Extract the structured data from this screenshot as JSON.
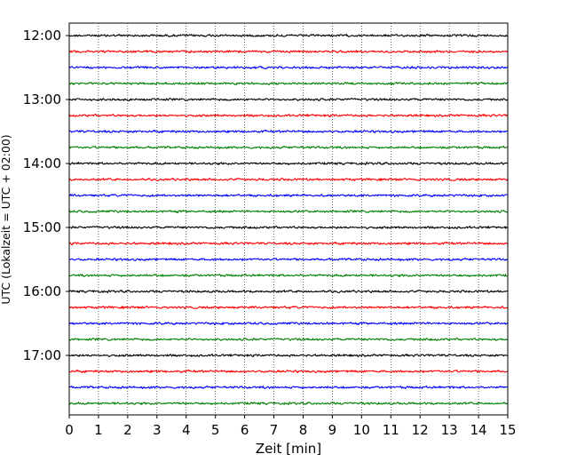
{
  "chart_data": {
    "type": "line",
    "title": "",
    "xlabel": "Zeit  [min]",
    "ylabel": "UTC (Lokalzeit = UTC + 02:00)",
    "xlim": [
      0,
      15
    ],
    "x_ticks": [
      0,
      1,
      2,
      3,
      4,
      5,
      6,
      7,
      8,
      9,
      10,
      11,
      12,
      13,
      14,
      15
    ],
    "x_tick_labels": [
      "0",
      "1",
      "2",
      "3",
      "4",
      "5",
      "6",
      "7",
      "8",
      "9",
      "10",
      "11",
      "12",
      "13",
      "14",
      "15"
    ],
    "y_ticks_hours": [
      "12:00",
      "13:00",
      "14:00",
      "15:00",
      "16:00",
      "17:00"
    ],
    "x_grid": true,
    "y_grid": false,
    "trace_minutes_utc": [
      "12:00",
      "12:15",
      "12:30",
      "12:45",
      "13:00",
      "13:15",
      "13:30",
      "13:45",
      "14:00",
      "14:15",
      "14:30",
      "14:45",
      "15:00",
      "15:15",
      "15:30",
      "15:45",
      "16:00",
      "16:15",
      "16:30",
      "16:45",
      "17:00",
      "17:15",
      "17:30",
      "17:45"
    ],
    "trace_color_cycle": [
      "#000000",
      "#ff0000",
      "#0000ff",
      "#008000"
    ],
    "trace_duration_min": 15,
    "start_utc": "12:00",
    "end_utc": "18:00",
    "trace_spacing_min": 15
  }
}
